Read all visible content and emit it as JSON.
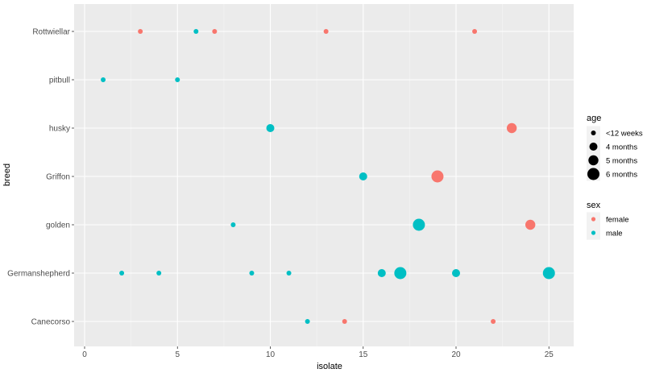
{
  "chart_data": {
    "type": "scatter",
    "title": "",
    "xlabel": "isolate",
    "ylabel": "breed",
    "xlim": [
      0,
      26.1
    ],
    "x_ticks": [
      0,
      5,
      10,
      15,
      20,
      25
    ],
    "categories": [
      "Canecorso",
      "Germanshepherd",
      "golden",
      "Griffon",
      "husky",
      "pitbull",
      "Rottwiellar"
    ],
    "size_legend": {
      "title": "age",
      "levels": [
        "<12 weeks",
        "4 months",
        "5 months",
        "6 months"
      ]
    },
    "color_legend": {
      "title": "sex",
      "levels": [
        "female",
        "male"
      ],
      "colors": {
        "female": "#F8766D",
        "male": "#00BFC4"
      }
    },
    "points": [
      {
        "x": 3,
        "breed": "Rottwiellar",
        "sex": "female",
        "age": "<12 weeks"
      },
      {
        "x": 6,
        "breed": "Rottwiellar",
        "sex": "male",
        "age": "<12 weeks"
      },
      {
        "x": 7,
        "breed": "Rottwiellar",
        "sex": "female",
        "age": "<12 weeks"
      },
      {
        "x": 13,
        "breed": "Rottwiellar",
        "sex": "female",
        "age": "<12 weeks"
      },
      {
        "x": 21,
        "breed": "Rottwiellar",
        "sex": "female",
        "age": "<12 weeks"
      },
      {
        "x": 1,
        "breed": "pitbull",
        "sex": "male",
        "age": "<12 weeks"
      },
      {
        "x": 5,
        "breed": "pitbull",
        "sex": "male",
        "age": "<12 weeks"
      },
      {
        "x": 10,
        "breed": "husky",
        "sex": "male",
        "age": "4 months"
      },
      {
        "x": 23,
        "breed": "husky",
        "sex": "female",
        "age": "5 months"
      },
      {
        "x": 15,
        "breed": "Griffon",
        "sex": "male",
        "age": "4 months"
      },
      {
        "x": 19,
        "breed": "Griffon",
        "sex": "female",
        "age": "6 months"
      },
      {
        "x": 8,
        "breed": "golden",
        "sex": "male",
        "age": "<12 weeks"
      },
      {
        "x": 18,
        "breed": "golden",
        "sex": "male",
        "age": "6 months"
      },
      {
        "x": 24,
        "breed": "golden",
        "sex": "female",
        "age": "5 months"
      },
      {
        "x": 2,
        "breed": "Germanshepherd",
        "sex": "male",
        "age": "<12 weeks"
      },
      {
        "x": 4,
        "breed": "Germanshepherd",
        "sex": "male",
        "age": "<12 weeks"
      },
      {
        "x": 9,
        "breed": "Germanshepherd",
        "sex": "male",
        "age": "<12 weeks"
      },
      {
        "x": 11,
        "breed": "Germanshepherd",
        "sex": "male",
        "age": "<12 weeks"
      },
      {
        "x": 16,
        "breed": "Germanshepherd",
        "sex": "male",
        "age": "4 months"
      },
      {
        "x": 17,
        "breed": "Germanshepherd",
        "sex": "male",
        "age": "6 months"
      },
      {
        "x": 20,
        "breed": "Germanshepherd",
        "sex": "male",
        "age": "4 months"
      },
      {
        "x": 25,
        "breed": "Germanshepherd",
        "sex": "male",
        "age": "6 months"
      },
      {
        "x": 12,
        "breed": "Canecorso",
        "sex": "male",
        "age": "<12 weeks"
      },
      {
        "x": 14,
        "breed": "Canecorso",
        "sex": "female",
        "age": "<12 weeks"
      },
      {
        "x": 22,
        "breed": "Canecorso",
        "sex": "female",
        "age": "<12 weeks"
      }
    ],
    "grid": true,
    "legend_position": "right"
  }
}
